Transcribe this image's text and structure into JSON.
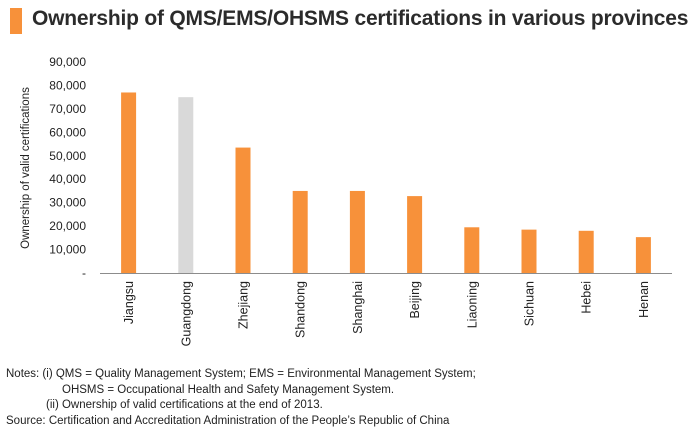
{
  "title": "Ownership of QMS/EMS/OHSMS certifications in various provinces",
  "colors": {
    "accent": "#f7913a",
    "highlight": "#d9d9d9",
    "axis": "#8c8c8c"
  },
  "chart_data": {
    "type": "bar",
    "title": "Ownership of QMS/EMS/OHSMS certifications in various provinces",
    "ylabel": "Ownership of valid certifications",
    "xlabel": "",
    "ylim": [
      0,
      90000
    ],
    "yticks": [
      0,
      10000,
      20000,
      30000,
      40000,
      50000,
      60000,
      70000,
      80000,
      90000
    ],
    "ytick_labels": [
      "-",
      "10,000",
      "20,000",
      "30,000",
      "40,000",
      "50,000",
      "60,000",
      "70,000",
      "80,000",
      "90,000"
    ],
    "categories": [
      "Jiangsu",
      "Guangdong",
      "Zhejiang",
      "Shandong",
      "Shanghai",
      "Beijing",
      "Liaoning",
      "Sichuan",
      "Hebei",
      "Henan"
    ],
    "values": [
      77000,
      75000,
      53500,
      35000,
      35000,
      32800,
      19500,
      18500,
      18000,
      15300
    ],
    "bar_colors": [
      "#f7913a",
      "#d9d9d9",
      "#f7913a",
      "#f7913a",
      "#f7913a",
      "#f7913a",
      "#f7913a",
      "#f7913a",
      "#f7913a",
      "#f7913a"
    ],
    "grid": false,
    "legend": "none"
  },
  "notes": {
    "line1": "Notes:  (i) QMS  = Quality Management  System;  EMS = Environmental Management System;",
    "line2": "OHSMS  = Occupational Health  and Safety Management  System.",
    "line3": "(ii) Ownership  of valid certifications at the end of 2013.",
    "source": "Source: Certification and Accreditation Administration of the People’s Republic of China"
  }
}
